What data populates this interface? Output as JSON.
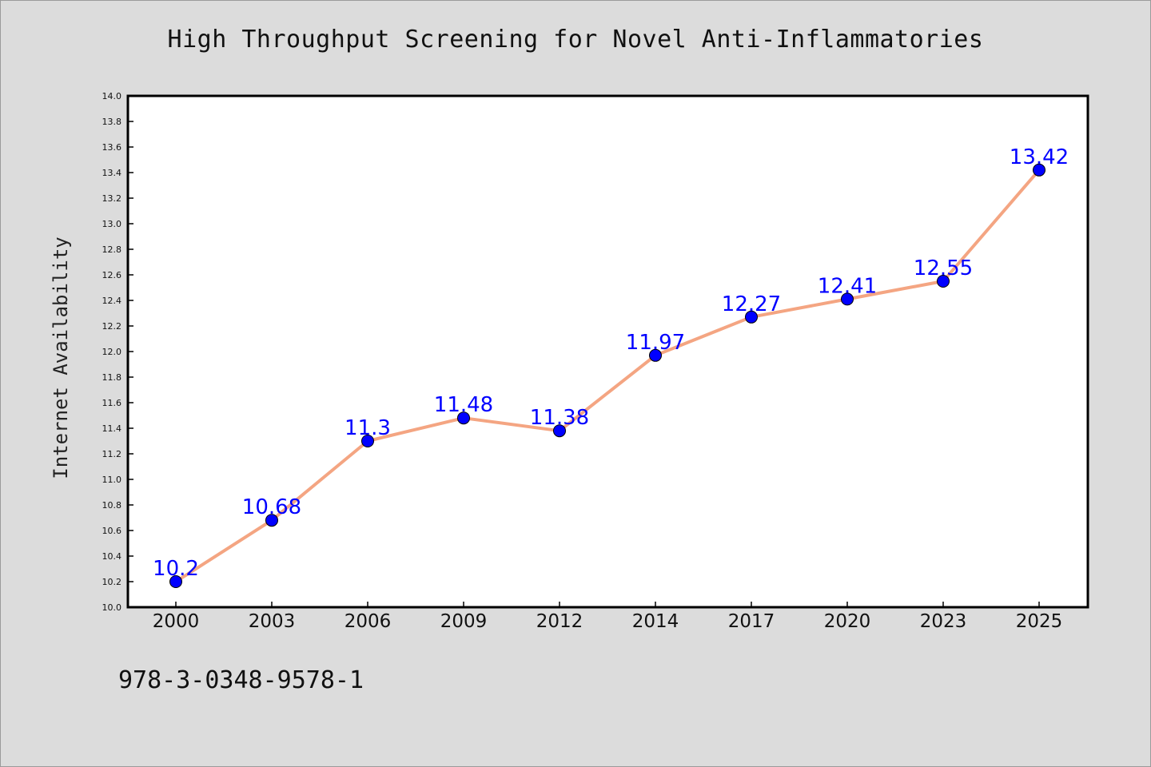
{
  "chart_data": {
    "type": "line",
    "title": "High Throughput Screening for Novel Anti-Inflammatories",
    "xlabel": "",
    "ylabel": "Internet Availability",
    "categories": [
      "2000",
      "2003",
      "2006",
      "2009",
      "2012",
      "2014",
      "2017",
      "2020",
      "2023",
      "2025"
    ],
    "series": [
      {
        "values": [
          10.2,
          10.68,
          11.3,
          11.48,
          11.38,
          11.97,
          12.27,
          12.41,
          12.55,
          13.42
        ],
        "labels": [
          "10.2",
          "10.68",
          "11.3",
          "11.48",
          "11.38",
          "11.97",
          "12.27",
          "12.41",
          "12.55",
          "13.42"
        ],
        "line_color": "#f4a582",
        "marker_color": "#0000ff",
        "label_color": "#0000ff"
      }
    ],
    "ylim": [
      10.0,
      14.0
    ],
    "yticks": [
      "10.0",
      "10.2",
      "10.4",
      "10.6",
      "10.8",
      "11.0",
      "11.2",
      "11.4",
      "11.6",
      "11.8",
      "12.0",
      "12.2",
      "12.4",
      "12.6",
      "12.8",
      "13.0",
      "13.2",
      "13.4",
      "13.6",
      "13.8",
      "14.0"
    ],
    "grid": false,
    "legend": "none"
  },
  "footer": {
    "code": "978-3-0348-9578-1"
  },
  "colors": {
    "background": "#dcdcdc",
    "plot_background": "#ffffff",
    "axis": "#000000"
  }
}
